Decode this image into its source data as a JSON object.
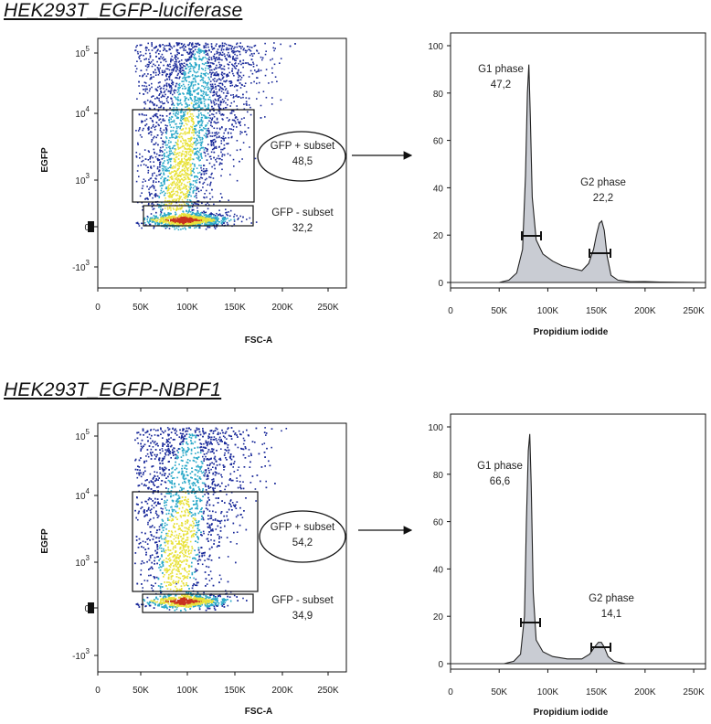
{
  "panels": [
    {
      "title": "HEK293T_EGFP-luciferase",
      "scatter": {
        "type": "scatter",
        "xlabel": "FSC-A",
        "ylabel": "EGFP",
        "x_ticks": [
          "0",
          "50K",
          "100K",
          "150K",
          "200K",
          "250K"
        ],
        "y_ticks": [
          {
            "base": "-10",
            "exp": "3"
          },
          {
            "base": "0",
            "exp": ""
          },
          {
            "base": "10",
            "exp": "3"
          },
          {
            "base": "10",
            "exp": "4"
          },
          {
            "base": "10",
            "exp": "5"
          }
        ],
        "gates": [
          {
            "name": "GFP + subset",
            "value": "48,5"
          },
          {
            "name": "GFP - subset",
            "value": "32,2"
          }
        ]
      },
      "histogram": {
        "type": "area",
        "xlabel": "Propidium iodide",
        "x_ticks": [
          "0",
          "50K",
          "100K",
          "150K",
          "200K",
          "250K"
        ],
        "y_ticks": [
          "0",
          "20",
          "40",
          "60",
          "80",
          "100"
        ],
        "xlim": [
          0,
          262144
        ],
        "ylim": [
          0,
          100
        ],
        "gates": [
          {
            "name": "G1 phase",
            "value": "47,2"
          },
          {
            "name": "G2 phase",
            "value": "22,2"
          }
        ],
        "x": [
          0,
          50000,
          60000,
          68000,
          74000,
          77000,
          79000,
          80500,
          82000,
          84000,
          88000,
          95000,
          105000,
          115000,
          125000,
          135000,
          142000,
          147000,
          150000,
          153000,
          155500,
          158000,
          161000,
          165000,
          172000,
          185000,
          200000,
          215000,
          262000
        ],
        "y": [
          0,
          0,
          1,
          4,
          14,
          45,
          80,
          92,
          70,
          36,
          18,
          12,
          9,
          7,
          6,
          5,
          8,
          14,
          20,
          25,
          26,
          22,
          11,
          3,
          1,
          0.3,
          0.4,
          0.2,
          0
        ]
      }
    },
    {
      "title": "HEK293T_EGFP-NBPF1",
      "scatter": {
        "type": "scatter",
        "xlabel": "FSC-A",
        "ylabel": "EGFP",
        "x_ticks": [
          "0",
          "50K",
          "100K",
          "150K",
          "200K",
          "250K"
        ],
        "y_ticks": [
          {
            "base": "-10",
            "exp": "3"
          },
          {
            "base": "0",
            "exp": ""
          },
          {
            "base": "10",
            "exp": "3"
          },
          {
            "base": "10",
            "exp": "4"
          },
          {
            "base": "10",
            "exp": "5"
          }
        ],
        "gates": [
          {
            "name": "GFP + subset",
            "value": "54,2"
          },
          {
            "name": "GFP - subset",
            "value": "34,9"
          }
        ]
      },
      "histogram": {
        "type": "area",
        "xlabel": "Propidium iodide",
        "x_ticks": [
          "0",
          "50K",
          "100K",
          "150K",
          "200K",
          "250K"
        ],
        "y_ticks": [
          "0",
          "20",
          "40",
          "60",
          "80",
          "100"
        ],
        "xlim": [
          0,
          262144
        ],
        "ylim": [
          0,
          100
        ],
        "gates": [
          {
            "name": "G1 phase",
            "value": "66,6"
          },
          {
            "name": "G2 phase",
            "value": "14,1"
          }
        ],
        "x": [
          0,
          55000,
          65000,
          72000,
          76000,
          78000,
          80000,
          81500,
          83000,
          85000,
          88000,
          95000,
          105000,
          120000,
          135000,
          143000,
          148000,
          152000,
          155000,
          158000,
          162000,
          168000,
          180000,
          262000
        ],
        "y": [
          0,
          0,
          1,
          4,
          20,
          60,
          90,
          97,
          75,
          30,
          10,
          5,
          3,
          2,
          2,
          4,
          7,
          9,
          9,
          7,
          3,
          1,
          0,
          0
        ]
      }
    }
  ],
  "colors": {
    "hist_fill": "#c9ccd3",
    "density_low": "#1a2a9a",
    "density_mid": "#2aa8c8",
    "density_high": "#e8e23a",
    "density_peak": "#c8321e"
  }
}
